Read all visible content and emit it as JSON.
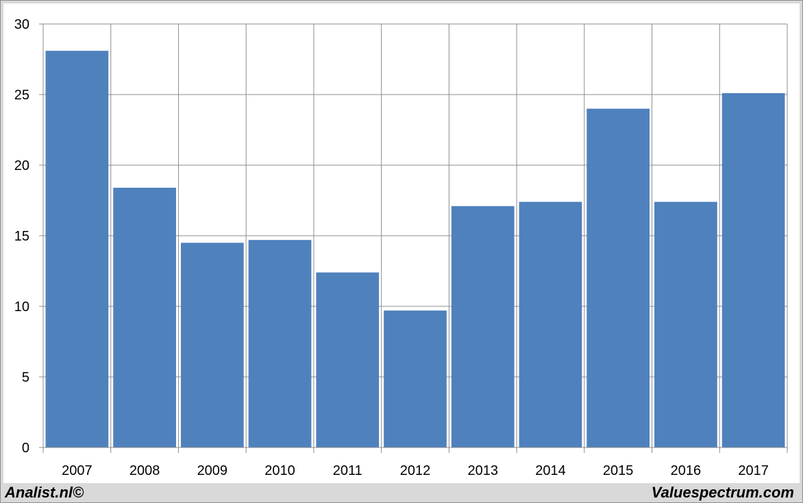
{
  "chart_data": {
    "type": "bar",
    "categories": [
      "2007",
      "2008",
      "2009",
      "2010",
      "2011",
      "2012",
      "2013",
      "2014",
      "2015",
      "2016",
      "2017"
    ],
    "values": [
      28.1,
      18.4,
      14.5,
      14.7,
      12.4,
      9.7,
      17.1,
      17.4,
      24.0,
      17.4,
      25.1
    ],
    "title": "",
    "xlabel": "",
    "ylabel": "",
    "ylim": [
      0,
      30
    ],
    "yticks": [
      0,
      5,
      10,
      15,
      20,
      25,
      30
    ],
    "grid": true,
    "bar_color": "#4f81bd"
  },
  "footer": {
    "left_text": "Analist.nl©",
    "right_text": "Valuespectrum.com"
  }
}
